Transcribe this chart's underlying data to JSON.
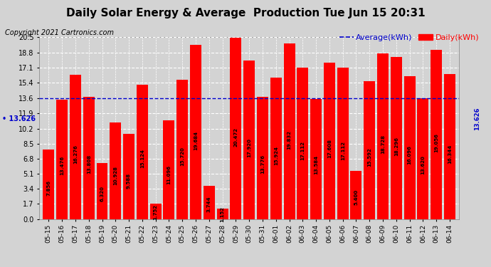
{
  "title": "Daily Solar Energy & Average  Production Tue Jun 15 20:31",
  "copyright": "Copyright 2021 Cartronics.com",
  "legend_avg": "Average(kWh)",
  "legend_daily": "Daily(kWh)",
  "average_value": 13.626,
  "average_label": "13.626",
  "categories": [
    "05-15",
    "05-16",
    "05-17",
    "05-18",
    "05-19",
    "05-20",
    "05-21",
    "05-22",
    "05-23",
    "05-24",
    "05-25",
    "05-26",
    "05-27",
    "05-28",
    "05-29",
    "05-30",
    "05-31",
    "06-01",
    "06-02",
    "06-03",
    "06-04",
    "06-05",
    "06-06",
    "06-07",
    "06-08",
    "06-09",
    "06-10",
    "06-11",
    "06-12",
    "06-13",
    "06-14"
  ],
  "values": [
    7.856,
    13.476,
    16.276,
    13.808,
    6.32,
    10.928,
    9.588,
    15.124,
    1.752,
    11.096,
    15.72,
    19.684,
    3.744,
    1.152,
    20.472,
    17.92,
    13.776,
    15.924,
    19.832,
    17.112,
    13.584,
    17.608,
    17.112,
    5.4,
    15.592,
    18.728,
    18.296,
    16.096,
    13.62,
    19.056,
    16.344
  ],
  "bar_color": "#ff0000",
  "avg_line_color": "#0000cc",
  "avg_label_color": "#0000cc",
  "y_ticks": [
    0.0,
    1.7,
    3.4,
    5.1,
    6.8,
    8.5,
    10.2,
    11.9,
    13.6,
    15.4,
    17.1,
    18.8,
    20.5
  ],
  "ylim": [
    0,
    20.5
  ],
  "title_fontsize": 11,
  "copyright_fontsize": 7,
  "legend_fontsize": 8,
  "bar_label_fontsize": 5,
  "tick_fontsize": 7,
  "background_color": "#d3d3d3",
  "grid_color": "white"
}
